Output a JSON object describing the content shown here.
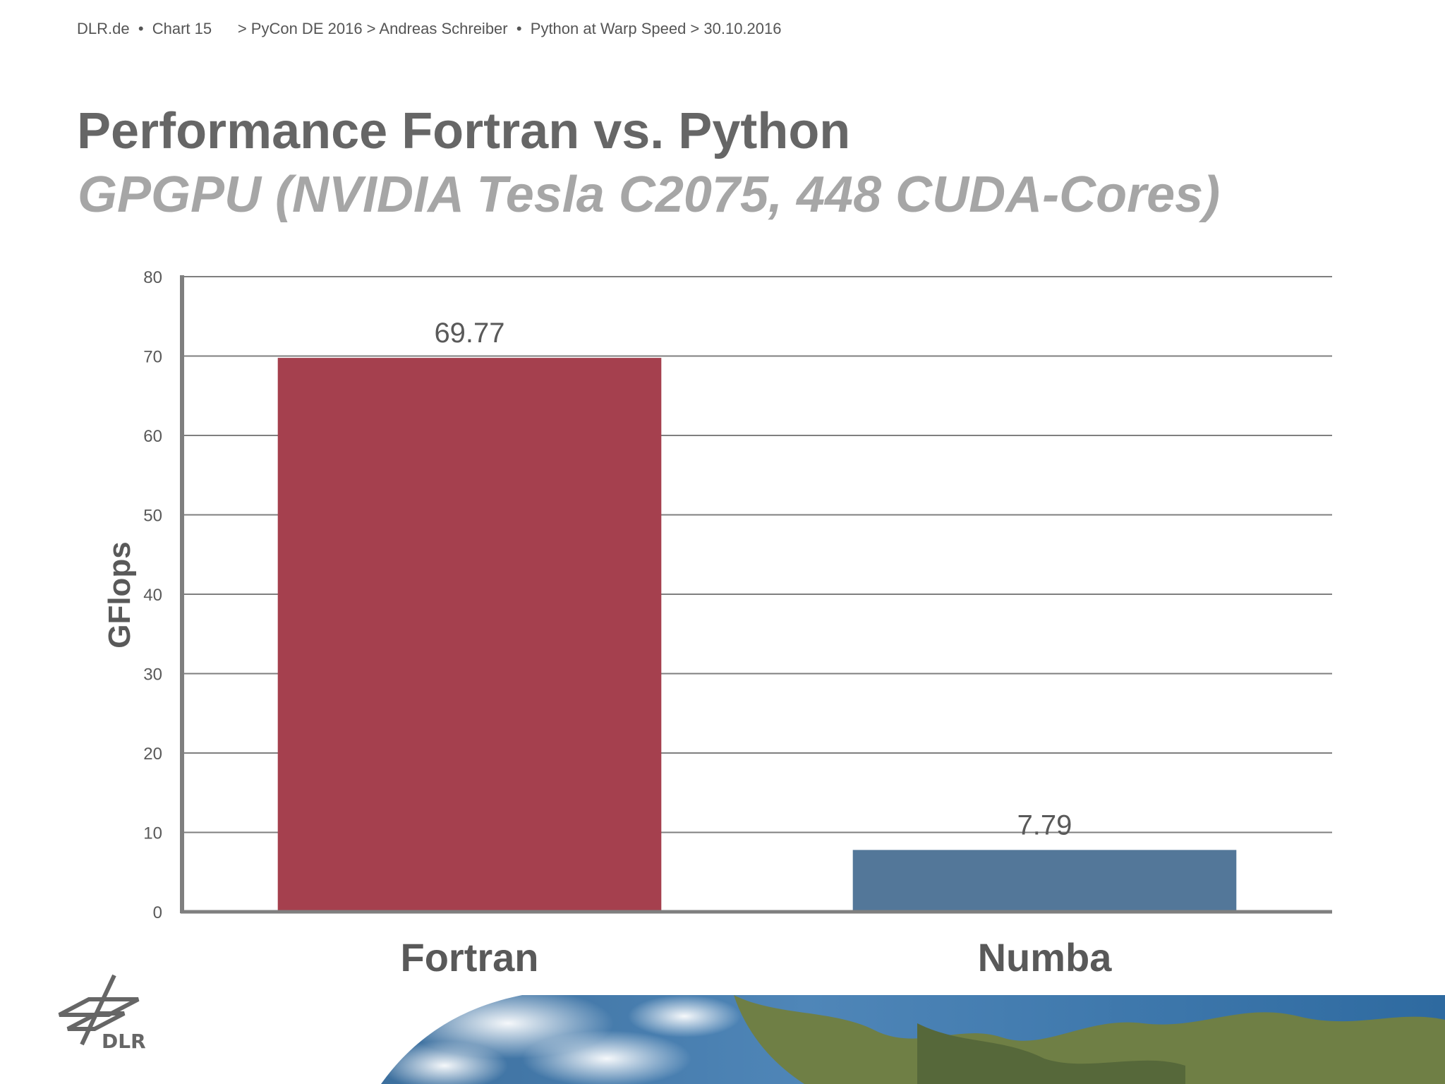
{
  "header": {
    "site": "DLR.de",
    "chart_label": "Chart 15",
    "breadcrumb": "> PyCon DE 2016 > Andreas Schreiber  •  Python at Warp Speed > 30.10.2016"
  },
  "slide": {
    "title": "Performance Fortran vs. Python",
    "subtitle": "GPGPU (NVIDIA Tesla C2075, 448 CUDA-Cores)",
    "logo_text": "DLR"
  },
  "colors": {
    "fortran": "#a5404e",
    "numba": "#537799",
    "axis": "#7f7f7f",
    "grid": "#7f7f7f",
    "text": "#595959"
  },
  "chart_data": {
    "type": "bar",
    "categories": [
      "Fortran",
      "Numba"
    ],
    "values": [
      69.77,
      7.79
    ],
    "data_labels": [
      "69.77",
      "7.79"
    ],
    "ylabel": "GFlops",
    "xlabel": "",
    "ylim": [
      0,
      80
    ],
    "yticks": [
      0,
      10,
      20,
      30,
      40,
      50,
      60,
      70,
      80
    ],
    "grid": true,
    "legend": "none"
  }
}
